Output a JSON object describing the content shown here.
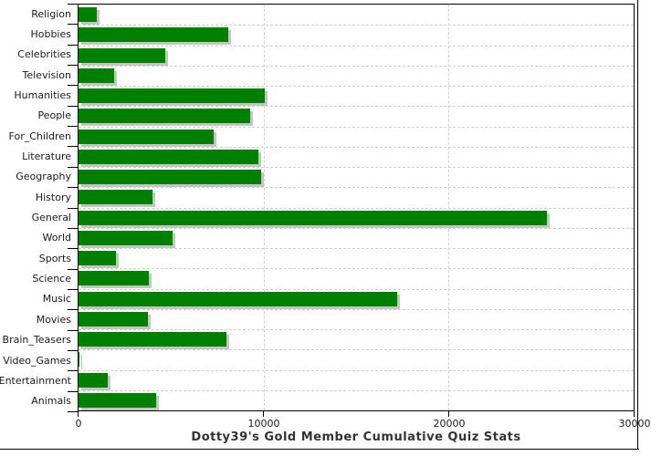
{
  "chart_data": {
    "type": "bar",
    "orientation": "horizontal",
    "title": "Dotty39's Gold Member Cumulative Quiz Stats",
    "categories": [
      "Religion",
      "Hobbies",
      "Celebrities",
      "Television",
      "Humanities",
      "People",
      "For_Children",
      "Literature",
      "Geography",
      "History",
      "General",
      "World",
      "Sports",
      "Science",
      "Music",
      "Movies",
      "Brain_Teasers",
      "Video_Games",
      "Entertainment",
      "Animals"
    ],
    "values": [
      1000,
      8100,
      4700,
      1900,
      10050,
      9300,
      7300,
      9700,
      9850,
      4000,
      25300,
      5100,
      2000,
      3800,
      17200,
      3750,
      8000,
      50,
      1600,
      4200
    ],
    "xlabel": "",
    "ylabel": "",
    "xlim": [
      0,
      30000
    ],
    "x_ticks": [
      "0",
      "10000",
      "20000",
      "30000"
    ],
    "x_tick_values": [
      0,
      10000,
      20000,
      30000
    ],
    "grid": "dashed",
    "legend_position": "none",
    "bar_color": "#008000",
    "shadow_color": "#c4c4c4",
    "grid_color": "#d0d0d0"
  }
}
